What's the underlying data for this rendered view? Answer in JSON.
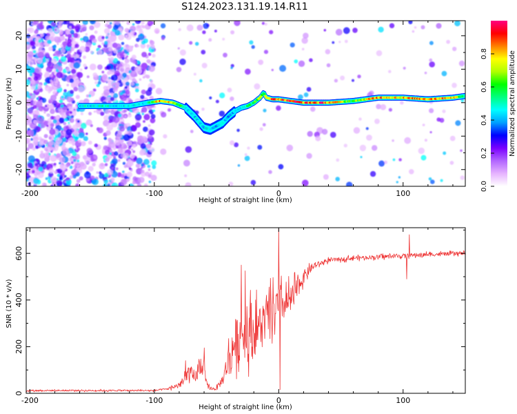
{
  "title": "S124.2023.131.19.14.R11",
  "chart_data": [
    {
      "type": "heatmap",
      "xlabel": "Height of straight line (km)",
      "ylabel": "Frequency (Hz)",
      "xlim": [
        -203,
        150
      ],
      "ylim": [
        -25,
        24.5
      ],
      "xticks": [
        -200,
        -100,
        0,
        100
      ],
      "yticks": [
        -20,
        -10,
        0,
        10,
        20
      ],
      "colorbar": {
        "label": "Normalized spectral amplitude",
        "range": [
          0,
          1
        ],
        "ticks": [
          0.0,
          0.2,
          0.4,
          0.6,
          0.8
        ],
        "colors": [
          "#ffffff",
          "#e6b3ff",
          "#b266ff",
          "#7a00ff",
          "#0000ff",
          "#00a0ff",
          "#00ffff",
          "#00ff80",
          "#00ff00",
          "#b0ff00",
          "#ffff00",
          "#ff8000",
          "#ff0000",
          "#ff0080"
        ]
      },
      "ridge": {
        "x": [
          -160,
          -140,
          -120,
          -105,
          -95,
          -85,
          -75,
          -68,
          -60,
          -55,
          -50,
          -45,
          -40,
          -35,
          -30,
          -25,
          -20,
          -15,
          -12,
          -10,
          -5,
          0,
          10,
          20,
          40,
          60,
          80,
          100,
          120,
          140,
          150
        ],
        "y": [
          -1,
          -1,
          -1,
          0,
          0.5,
          0,
          -1.5,
          -4,
          -7.5,
          -8,
          -7,
          -6,
          -4,
          -2.5,
          -1.5,
          -1,
          0,
          1.5,
          3,
          1.5,
          1,
          1,
          0.5,
          0,
          0,
          0.5,
          1.5,
          1.5,
          1,
          1.5,
          2
        ],
        "amp": [
          0.45,
          0.5,
          0.45,
          0.5,
          0.9,
          0.8,
          0.5,
          0.45,
          0.45,
          0.5,
          0.4,
          0.45,
          0.4,
          0.45,
          0.5,
          0.55,
          0.6,
          0.7,
          0.5,
          0.85,
          0.9,
          0.9,
          0.95,
          0.9,
          0.9,
          0.6,
          0.9,
          0.8,
          0.9,
          0.85,
          0.5
        ]
      },
      "noise_region": [
        -203,
        -100
      ]
    },
    {
      "type": "line",
      "xlabel": "Height of straight line (km)",
      "ylabel": "SNR (10 * v/v)",
      "xlim": [
        -203,
        150
      ],
      "ylim": [
        0,
        710
      ],
      "xticks": [
        -200,
        -100,
        0,
        100
      ],
      "yticks": [
        0,
        200,
        400,
        600
      ],
      "color": "#ee3333",
      "envelope": {
        "x": [
          -203,
          -100,
          -90,
          -80,
          -75,
          -72,
          -68,
          -65,
          -62,
          -58,
          -55,
          -50,
          -45,
          -40,
          -35,
          -30,
          -25,
          -20,
          -15,
          -10,
          -5,
          0,
          5,
          10,
          15,
          20,
          25,
          30,
          40,
          60,
          80,
          100,
          120,
          150
        ],
        "y": [
          12,
          12,
          18,
          35,
          60,
          100,
          60,
          90,
          130,
          40,
          20,
          20,
          60,
          150,
          220,
          250,
          270,
          260,
          290,
          320,
          350,
          380,
          380,
          400,
          450,
          500,
          530,
          550,
          570,
          580,
          585,
          590,
          595,
          600
        ],
        "spread": [
          6,
          6,
          8,
          20,
          40,
          70,
          40,
          60,
          80,
          25,
          10,
          15,
          40,
          120,
          180,
          200,
          200,
          190,
          170,
          160,
          150,
          140,
          120,
          110,
          80,
          50,
          30,
          20,
          15,
          15,
          15,
          15,
          15,
          12
        ]
      },
      "spikes": [
        {
          "x": -75,
          "y": 140
        },
        {
          "x": -60,
          "y": 195
        },
        {
          "x": -30,
          "y": 550
        },
        {
          "x": -27,
          "y": 525
        },
        {
          "x": 0,
          "y": 705
        },
        {
          "x": 1,
          "y": 15
        },
        {
          "x": 105,
          "y": 680
        },
        {
          "x": 103,
          "y": 490
        }
      ]
    }
  ]
}
